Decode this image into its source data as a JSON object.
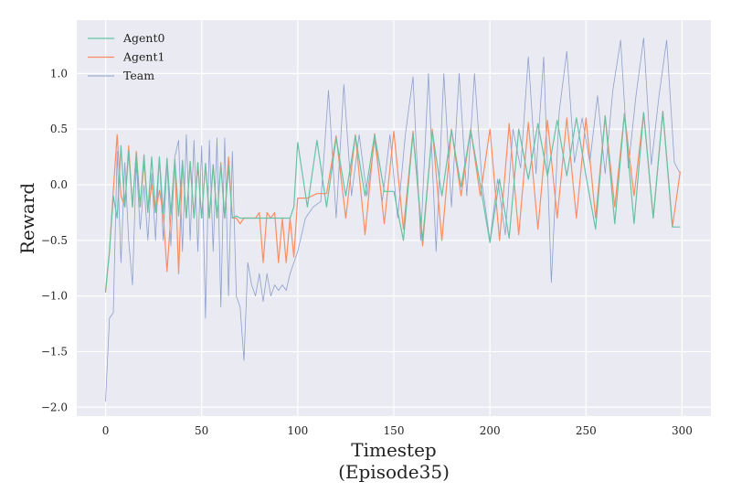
{
  "chart_data": {
    "type": "line",
    "xlabel": "Timestep",
    "xlabel_line2": "(Episode35)",
    "ylabel": "Reward",
    "xlim": [
      -15,
      315
    ],
    "ylim": [
      -2.08,
      1.48
    ],
    "xticks": [
      0,
      50,
      100,
      150,
      200,
      250,
      300
    ],
    "yticks": [
      -2.0,
      -1.5,
      -1.0,
      -0.5,
      0.0,
      0.5,
      1.0
    ],
    "ytick_labels": [
      "−2.0",
      "−1.5",
      "−1.0",
      "−0.5",
      "0.0",
      "0.5",
      "1.0"
    ],
    "grid": true,
    "background": "#eaeaf2",
    "legend_position": "top-left",
    "series": [
      {
        "name": "Agent0",
        "color": "#66c2a5",
        "x": [
          0,
          2,
          4,
          6,
          8,
          10,
          12,
          14,
          16,
          18,
          20,
          22,
          24,
          26,
          28,
          30,
          32,
          34,
          36,
          38,
          40,
          42,
          44,
          46,
          48,
          50,
          52,
          54,
          56,
          58,
          60,
          62,
          64,
          66,
          68,
          70,
          72,
          74,
          76,
          78,
          80,
          82,
          84,
          86,
          88,
          90,
          92,
          94,
          96,
          98,
          100,
          105,
          110,
          115,
          120,
          125,
          130,
          135,
          140,
          145,
          150,
          155,
          160,
          165,
          170,
          175,
          180,
          185,
          190,
          195,
          200,
          205,
          210,
          215,
          220,
          225,
          230,
          235,
          240,
          245,
          250,
          255,
          260,
          265,
          270,
          275,
          280,
          285,
          290,
          295,
          299
        ],
        "values": [
          -0.95,
          -0.6,
          -0.1,
          -0.3,
          0.35,
          -0.2,
          0.3,
          -0.2,
          0.28,
          -0.2,
          0.27,
          -0.25,
          0.25,
          -0.25,
          0.25,
          -0.26,
          0.24,
          -0.27,
          0.23,
          -0.28,
          0.22,
          -0.3,
          0.21,
          -0.3,
          0.2,
          -0.3,
          0.19,
          -0.3,
          0.18,
          -0.3,
          0.18,
          -0.3,
          0.17,
          -0.3,
          -0.28,
          -0.3,
          -0.3,
          -0.3,
          -0.3,
          -0.3,
          -0.3,
          -0.3,
          -0.3,
          -0.3,
          -0.3,
          -0.3,
          -0.3,
          -0.3,
          -0.3,
          -0.2,
          0.38,
          -0.2,
          0.4,
          -0.2,
          0.42,
          -0.1,
          0.44,
          -0.1,
          0.45,
          -0.06,
          -0.06,
          -0.5,
          0.46,
          -0.5,
          0.48,
          -0.1,
          0.49,
          -0.02,
          0.49,
          0.0,
          -0.52,
          0.05,
          -0.48,
          0.5,
          0.05,
          0.55,
          0.08,
          0.58,
          0.08,
          0.6,
          0.08,
          -0.4,
          0.62,
          -0.35,
          0.64,
          -0.35,
          0.65,
          -0.3,
          0.66,
          -0.38,
          -0.38
        ]
      },
      {
        "name": "Agent1",
        "color": "#fc8d62",
        "x": [
          0,
          2,
          4,
          6,
          8,
          10,
          12,
          14,
          16,
          18,
          20,
          22,
          24,
          26,
          28,
          30,
          32,
          34,
          36,
          38,
          40,
          42,
          44,
          46,
          48,
          50,
          52,
          54,
          56,
          58,
          60,
          62,
          64,
          66,
          68,
          70,
          72,
          74,
          76,
          78,
          80,
          82,
          84,
          86,
          88,
          90,
          92,
          94,
          96,
          98,
          100,
          105,
          110,
          115,
          120,
          125,
          130,
          135,
          140,
          145,
          150,
          155,
          160,
          165,
          170,
          175,
          180,
          185,
          190,
          195,
          200,
          205,
          210,
          215,
          220,
          225,
          230,
          235,
          240,
          245,
          250,
          255,
          260,
          265,
          270,
          275,
          280,
          285,
          290,
          295,
          299
        ],
        "values": [
          -0.97,
          -0.6,
          -0.05,
          0.45,
          -0.1,
          -0.2,
          0.35,
          -0.2,
          0.3,
          -0.2,
          0.2,
          -0.22,
          0.0,
          -0.25,
          -0.05,
          -0.26,
          -0.78,
          -0.27,
          0.22,
          -0.8,
          0.21,
          -0.3,
          0.2,
          -0.3,
          0.19,
          -0.3,
          0.19,
          -0.3,
          0.18,
          -0.3,
          0.2,
          -0.3,
          0.25,
          -0.3,
          -0.3,
          -0.35,
          -0.3,
          -0.3,
          -0.3,
          -0.3,
          -0.25,
          -0.7,
          -0.25,
          -0.3,
          -0.25,
          -0.7,
          -0.3,
          -0.7,
          -0.3,
          -0.65,
          -0.12,
          -0.12,
          -0.08,
          -0.08,
          0.44,
          -0.3,
          0.45,
          -0.45,
          0.46,
          -0.35,
          0.48,
          -0.4,
          0.48,
          -0.55,
          0.5,
          -0.5,
          0.5,
          -0.1,
          0.5,
          -0.1,
          0.5,
          -0.5,
          0.55,
          -0.45,
          0.56,
          -0.4,
          0.58,
          -0.3,
          0.6,
          -0.3,
          0.6,
          -0.3,
          0.62,
          -0.2,
          0.64,
          -0.1,
          0.65,
          -0.3,
          0.66,
          -0.38,
          0.12
        ]
      },
      {
        "name": "Team",
        "color": "#8da0cb",
        "x": [
          0,
          2,
          4,
          6,
          8,
          10,
          12,
          14,
          16,
          18,
          20,
          22,
          24,
          26,
          28,
          30,
          32,
          34,
          36,
          38,
          40,
          42,
          44,
          46,
          48,
          50,
          52,
          54,
          56,
          58,
          60,
          62,
          64,
          66,
          68,
          70,
          72,
          74,
          76,
          78,
          80,
          82,
          84,
          86,
          88,
          90,
          92,
          94,
          96,
          98,
          100,
          104,
          108,
          112,
          116,
          120,
          124,
          128,
          132,
          136,
          140,
          144,
          148,
          152,
          156,
          160,
          164,
          168,
          172,
          176,
          180,
          184,
          188,
          192,
          196,
          200,
          204,
          208,
          212,
          216,
          220,
          224,
          228,
          232,
          236,
          240,
          244,
          248,
          252,
          256,
          260,
          264,
          268,
          272,
          276,
          280,
          284,
          288,
          292,
          296,
          299
        ],
        "values": [
          -1.95,
          -1.2,
          -1.15,
          0.3,
          -0.7,
          0.2,
          -0.5,
          -0.9,
          0.2,
          -0.4,
          0.0,
          -0.5,
          0.1,
          -0.5,
          0.25,
          -0.5,
          0.2,
          -0.55,
          0.25,
          0.4,
          -0.6,
          0.45,
          -0.5,
          0.4,
          -0.6,
          0.35,
          -1.2,
          0.4,
          -0.6,
          0.42,
          -1.1,
          0.42,
          -1.0,
          0.3,
          -1.0,
          -1.1,
          -1.58,
          -0.7,
          -0.9,
          -1.0,
          -0.8,
          -1.05,
          -0.8,
          -1.0,
          -0.9,
          -0.95,
          -0.9,
          -0.95,
          -0.8,
          -0.7,
          -0.6,
          -0.3,
          -0.2,
          -0.15,
          0.85,
          -0.3,
          0.9,
          -0.1,
          0.45,
          -0.1,
          0.4,
          -0.15,
          0.45,
          -0.3,
          0.45,
          0.97,
          -0.5,
          1.0,
          -0.6,
          1.0,
          -0.2,
          1.0,
          -0.1,
          1.0,
          0.0,
          -0.5,
          0.05,
          -0.45,
          0.5,
          0.15,
          1.15,
          0.1,
          1.15,
          -0.88,
          0.65,
          1.2,
          0.2,
          0.6,
          0.2,
          0.8,
          0.1,
          0.85,
          1.3,
          0.15,
          0.8,
          1.32,
          0.18,
          0.8,
          1.3,
          0.2,
          0.1
        ]
      }
    ]
  }
}
